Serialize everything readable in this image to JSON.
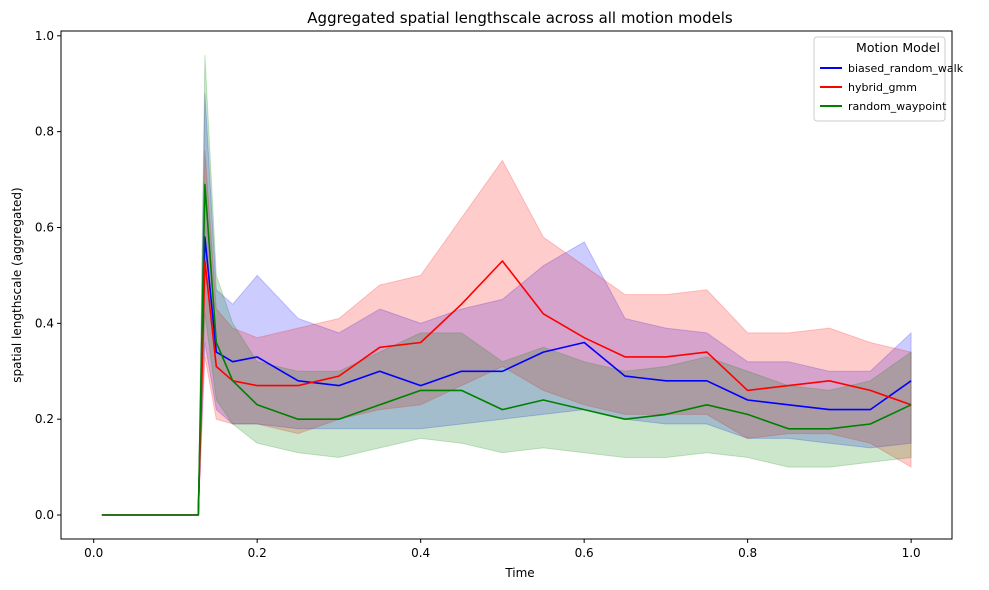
{
  "chart_data": {
    "type": "line",
    "title": "Aggregated spatial lengthscale across all motion models",
    "xlabel": "Time",
    "ylabel": "spatial lengthscale (aggregated)",
    "xlim": [
      -0.04,
      1.05
    ],
    "ylim": [
      -0.05,
      1.01
    ],
    "xticks": [
      0.0,
      0.2,
      0.4,
      0.6,
      0.8,
      1.0
    ],
    "xtick_labels": [
      "0.0",
      "0.2",
      "0.4",
      "0.6",
      "0.8",
      "1.0"
    ],
    "yticks": [
      0.0,
      0.2,
      0.4,
      0.6,
      0.8,
      1.0
    ],
    "ytick_labels": [
      "0.0",
      "0.2",
      "0.4",
      "0.6",
      "0.8",
      "1.0"
    ],
    "grid": false,
    "legend": {
      "title": "Motion Model",
      "position": "top-right"
    },
    "x": [
      0.01,
      0.128,
      0.136,
      0.15,
      0.17,
      0.2,
      0.25,
      0.3,
      0.35,
      0.4,
      0.45,
      0.5,
      0.55,
      0.6,
      0.65,
      0.7,
      0.75,
      0.8,
      0.85,
      0.9,
      0.95,
      1.0
    ],
    "series": [
      {
        "name": "biased_random_walk",
        "color": "#0000ff",
        "values": [
          0.0,
          0.0,
          0.58,
          0.34,
          0.32,
          0.33,
          0.28,
          0.27,
          0.3,
          0.27,
          0.3,
          0.3,
          0.34,
          0.36,
          0.29,
          0.28,
          0.28,
          0.24,
          0.23,
          0.22,
          0.22,
          0.28
        ],
        "lower": [
          0.0,
          0.0,
          0.36,
          0.22,
          0.19,
          0.19,
          0.18,
          0.18,
          0.18,
          0.18,
          0.19,
          0.2,
          0.21,
          0.22,
          0.2,
          0.19,
          0.19,
          0.16,
          0.16,
          0.15,
          0.14,
          0.15
        ],
        "upper": [
          0.0,
          0.0,
          0.88,
          0.47,
          0.44,
          0.5,
          0.41,
          0.38,
          0.43,
          0.4,
          0.43,
          0.45,
          0.52,
          0.57,
          0.41,
          0.39,
          0.38,
          0.32,
          0.32,
          0.3,
          0.3,
          0.38
        ]
      },
      {
        "name": "hybrid_gmm",
        "color": "#ff0000",
        "values": [
          0.0,
          0.0,
          0.53,
          0.31,
          0.28,
          0.27,
          0.27,
          0.29,
          0.35,
          0.36,
          0.44,
          0.53,
          0.42,
          0.37,
          0.33,
          0.33,
          0.34,
          0.26,
          0.27,
          0.28,
          0.26,
          0.23
        ],
        "lower": [
          0.0,
          0.0,
          0.33,
          0.2,
          0.19,
          0.19,
          0.17,
          0.2,
          0.22,
          0.23,
          0.27,
          0.31,
          0.26,
          0.23,
          0.21,
          0.21,
          0.21,
          0.16,
          0.17,
          0.17,
          0.15,
          0.1
        ],
        "upper": [
          0.0,
          0.0,
          0.76,
          0.43,
          0.39,
          0.37,
          0.39,
          0.41,
          0.48,
          0.5,
          0.62,
          0.74,
          0.58,
          0.52,
          0.46,
          0.46,
          0.47,
          0.38,
          0.38,
          0.39,
          0.36,
          0.34
        ]
      },
      {
        "name": "random_waypoint",
        "color": "#008000",
        "values": [
          0.0,
          0.0,
          0.69,
          0.36,
          0.28,
          0.23,
          0.2,
          0.2,
          0.23,
          0.26,
          0.26,
          0.22,
          0.24,
          0.22,
          0.2,
          0.21,
          0.23,
          0.21,
          0.18,
          0.18,
          0.19,
          0.23
        ],
        "lower": [
          0.0,
          0.0,
          0.42,
          0.24,
          0.19,
          0.15,
          0.13,
          0.12,
          0.14,
          0.16,
          0.15,
          0.13,
          0.14,
          0.13,
          0.12,
          0.12,
          0.13,
          0.12,
          0.1,
          0.1,
          0.11,
          0.12
        ],
        "upper": [
          0.0,
          0.0,
          0.96,
          0.5,
          0.4,
          0.32,
          0.3,
          0.3,
          0.34,
          0.38,
          0.38,
          0.32,
          0.35,
          0.32,
          0.3,
          0.31,
          0.33,
          0.3,
          0.27,
          0.26,
          0.28,
          0.34
        ]
      }
    ]
  }
}
